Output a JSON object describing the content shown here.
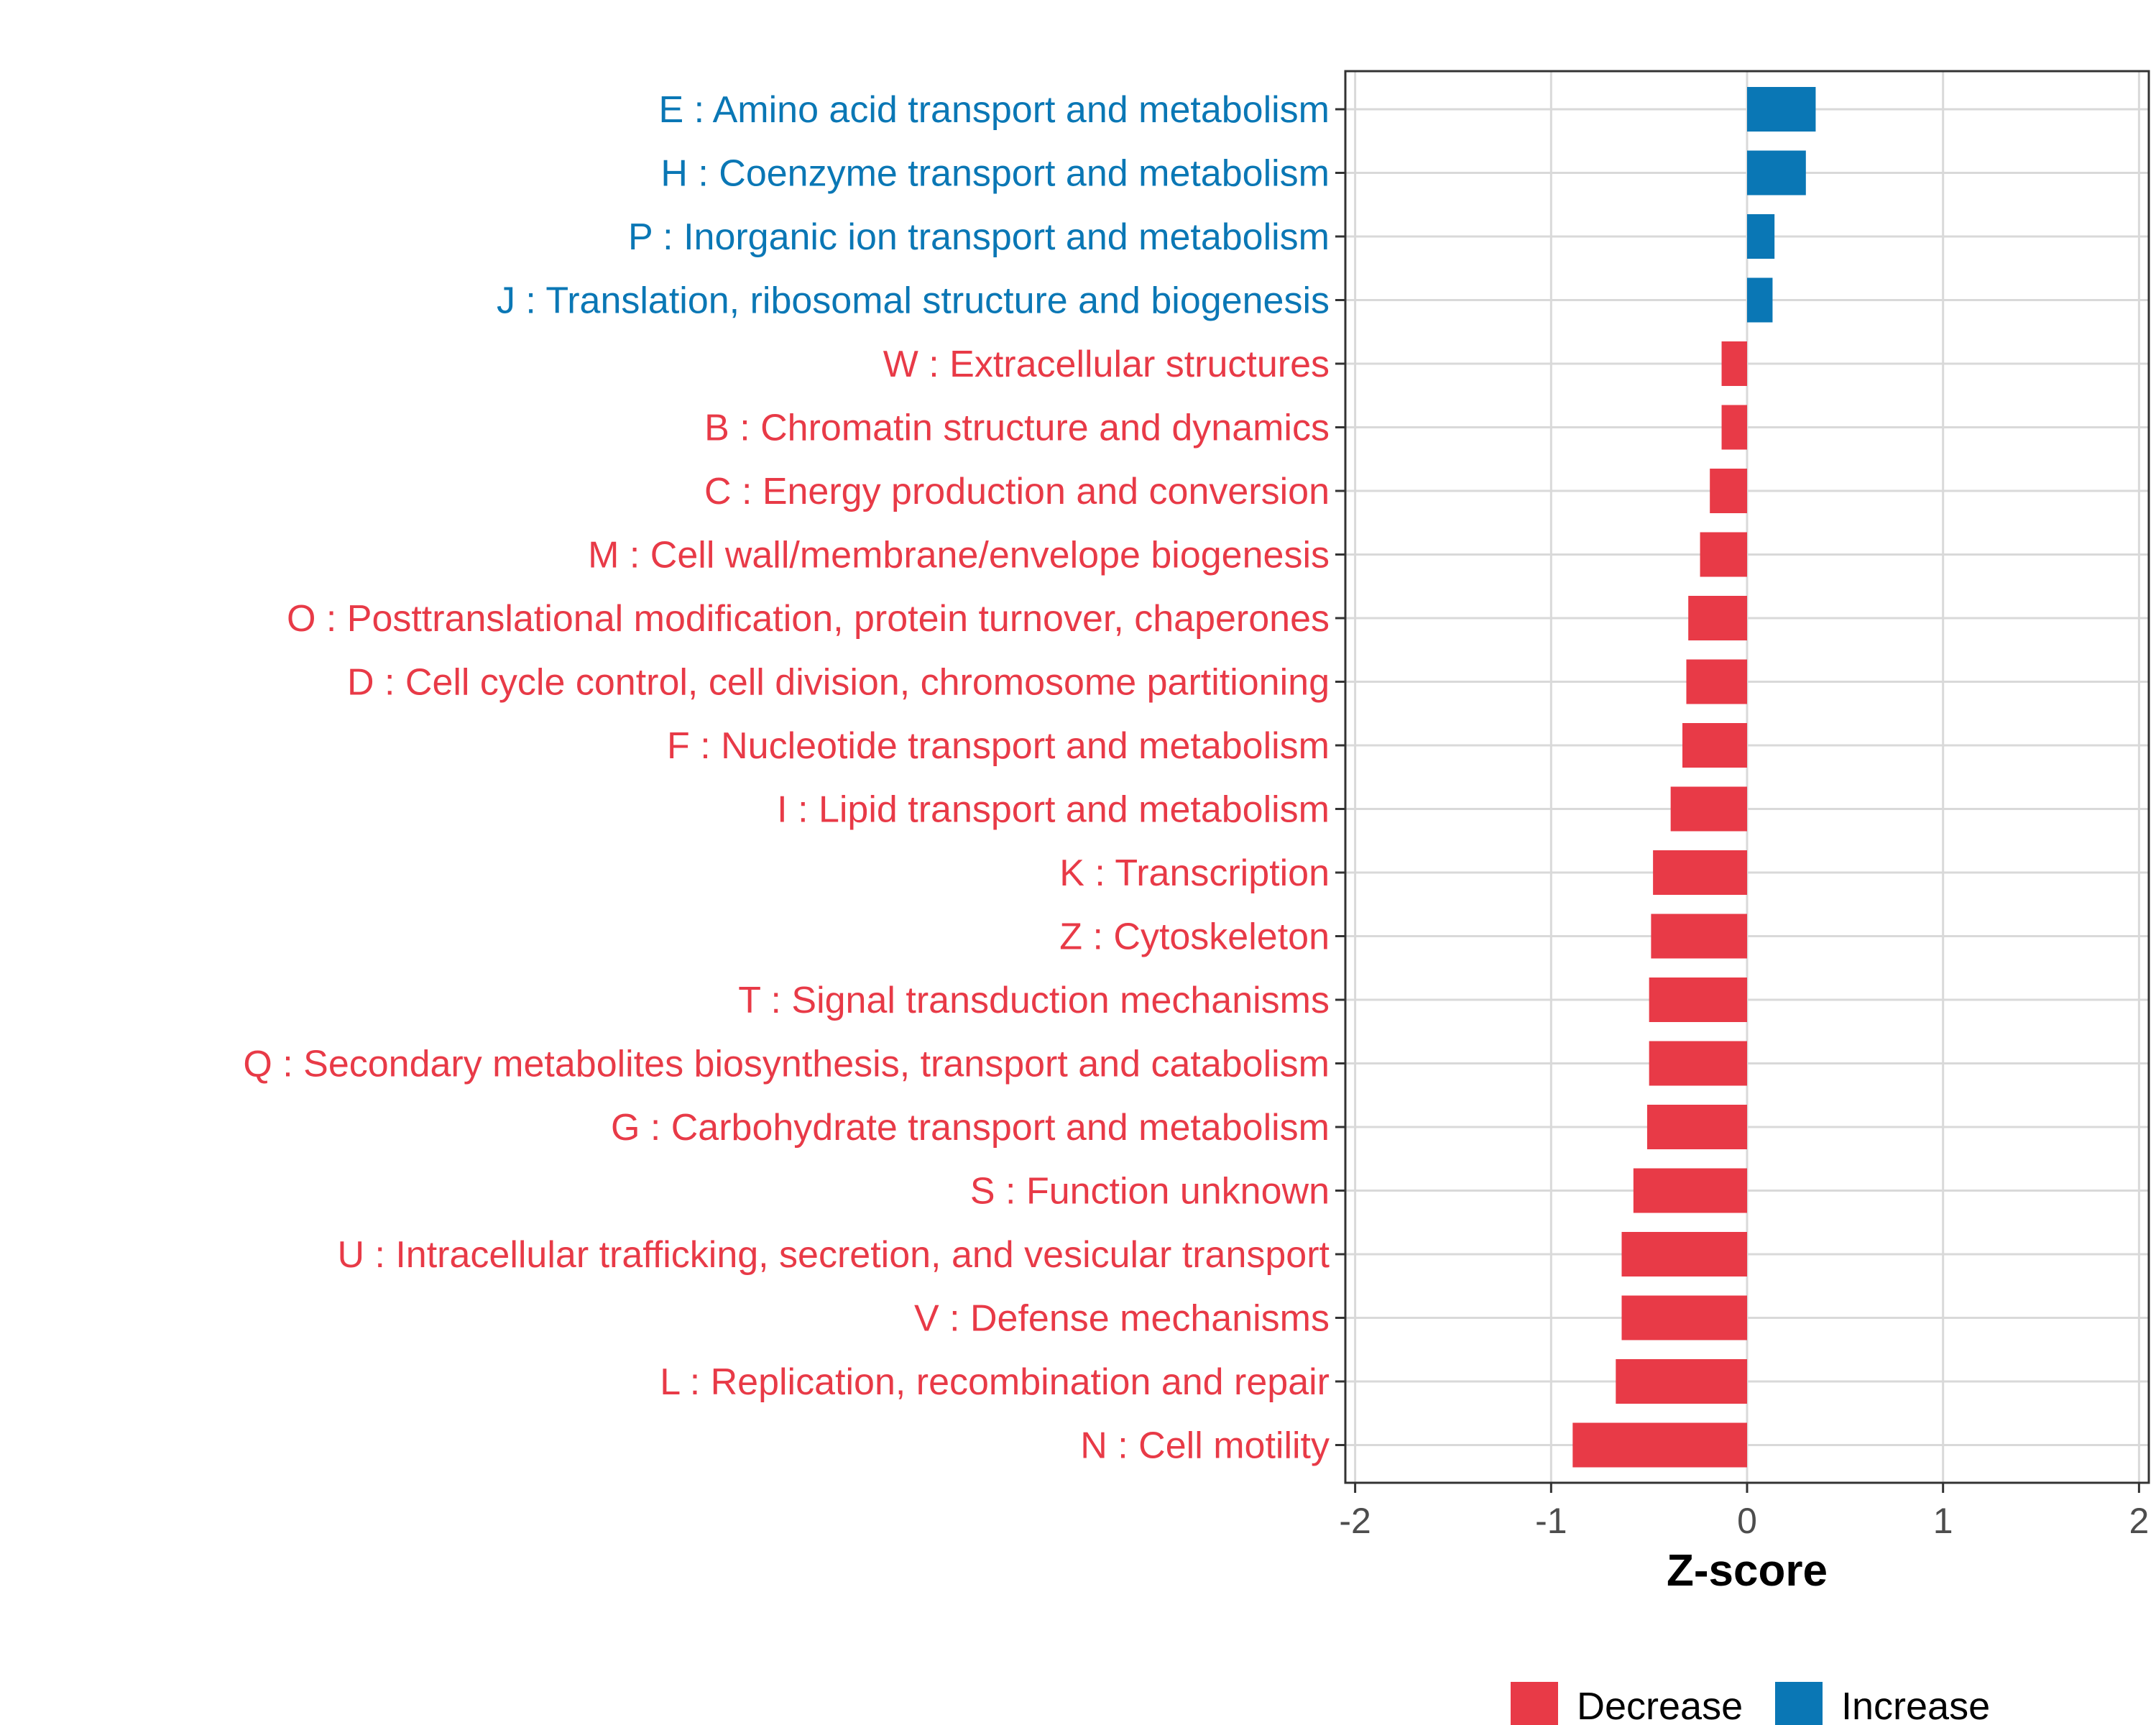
{
  "chart_data": {
    "type": "bar",
    "orientation": "horizontal",
    "title": "",
    "xlabel": "Z-score",
    "ylabel": "",
    "xlim": [
      -2.05,
      2.05
    ],
    "xticks": [
      -2,
      -1,
      0,
      1,
      2
    ],
    "xtick_labels": [
      "-2",
      "-1",
      "0",
      "1",
      "2"
    ],
    "grid": true,
    "legend_position": "bottom",
    "categories": [
      "E : Amino acid transport and metabolism",
      "H : Coenzyme transport and metabolism",
      "P : Inorganic ion transport and metabolism",
      "J : Translation, ribosomal structure and biogenesis",
      "W : Extracellular structures",
      "B : Chromatin structure and dynamics",
      "C : Energy production and conversion",
      "M : Cell wall/membrane/envelope biogenesis",
      "O : Posttranslational modification, protein turnover, chaperones",
      "D : Cell cycle control, cell division, chromosome partitioning",
      "F : Nucleotide transport and metabolism",
      "I : Lipid transport and metabolism",
      "K : Transcription",
      "Z : Cytoskeleton",
      "T : Signal transduction mechanisms",
      "Q : Secondary metabolites biosynthesis, transport and catabolism",
      "G : Carbohydrate transport and metabolism",
      "S : Function unknown",
      "U : Intracellular trafficking, secretion, and vesicular transport",
      "V : Defense mechanisms",
      "L : Replication, recombination and repair",
      "N : Cell motility"
    ],
    "values": [
      0.35,
      0.3,
      0.14,
      0.13,
      -0.13,
      -0.13,
      -0.19,
      -0.24,
      -0.3,
      -0.31,
      -0.33,
      -0.39,
      -0.48,
      -0.49,
      -0.5,
      -0.5,
      -0.51,
      -0.58,
      -0.64,
      -0.64,
      -0.67,
      -0.89
    ],
    "groups": [
      "Increase",
      "Increase",
      "Increase",
      "Increase",
      "Decrease",
      "Decrease",
      "Decrease",
      "Decrease",
      "Decrease",
      "Decrease",
      "Decrease",
      "Decrease",
      "Decrease",
      "Decrease",
      "Decrease",
      "Decrease",
      "Decrease",
      "Decrease",
      "Decrease",
      "Decrease",
      "Decrease",
      "Decrease"
    ],
    "legend": [
      {
        "label": "Decrease",
        "color": "#e83a47"
      },
      {
        "label": "Increase",
        "color": "#0a77b5"
      }
    ],
    "colors": {
      "Decrease": "#e83a47",
      "Increase": "#0a77b5"
    }
  }
}
